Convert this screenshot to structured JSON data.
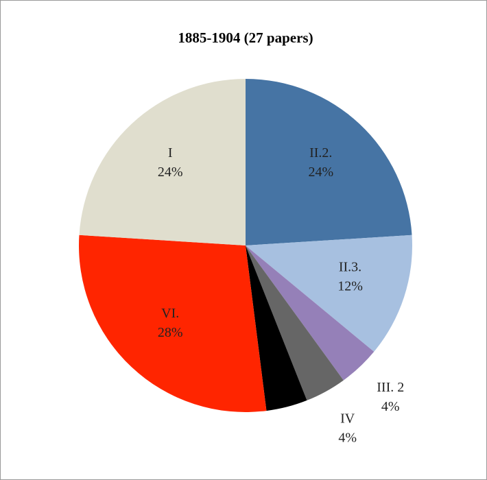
{
  "chart_data": {
    "type": "pie",
    "title": "1885-1904 (27 papers)",
    "categories": [
      "II.2.",
      "II.3.",
      "III. 2",
      "IV",
      null,
      "VI.",
      "I"
    ],
    "values": [
      24,
      12,
      4,
      4,
      4,
      28,
      24
    ],
    "value_labels": [
      "24%",
      "12%",
      "4%",
      "4%",
      null,
      "28%",
      "24%"
    ],
    "colors": [
      "#4674a4",
      "#a7c0e0",
      "#9580b8",
      "#666666",
      "#000000",
      "#ff2500",
      "#e0dece"
    ]
  }
}
